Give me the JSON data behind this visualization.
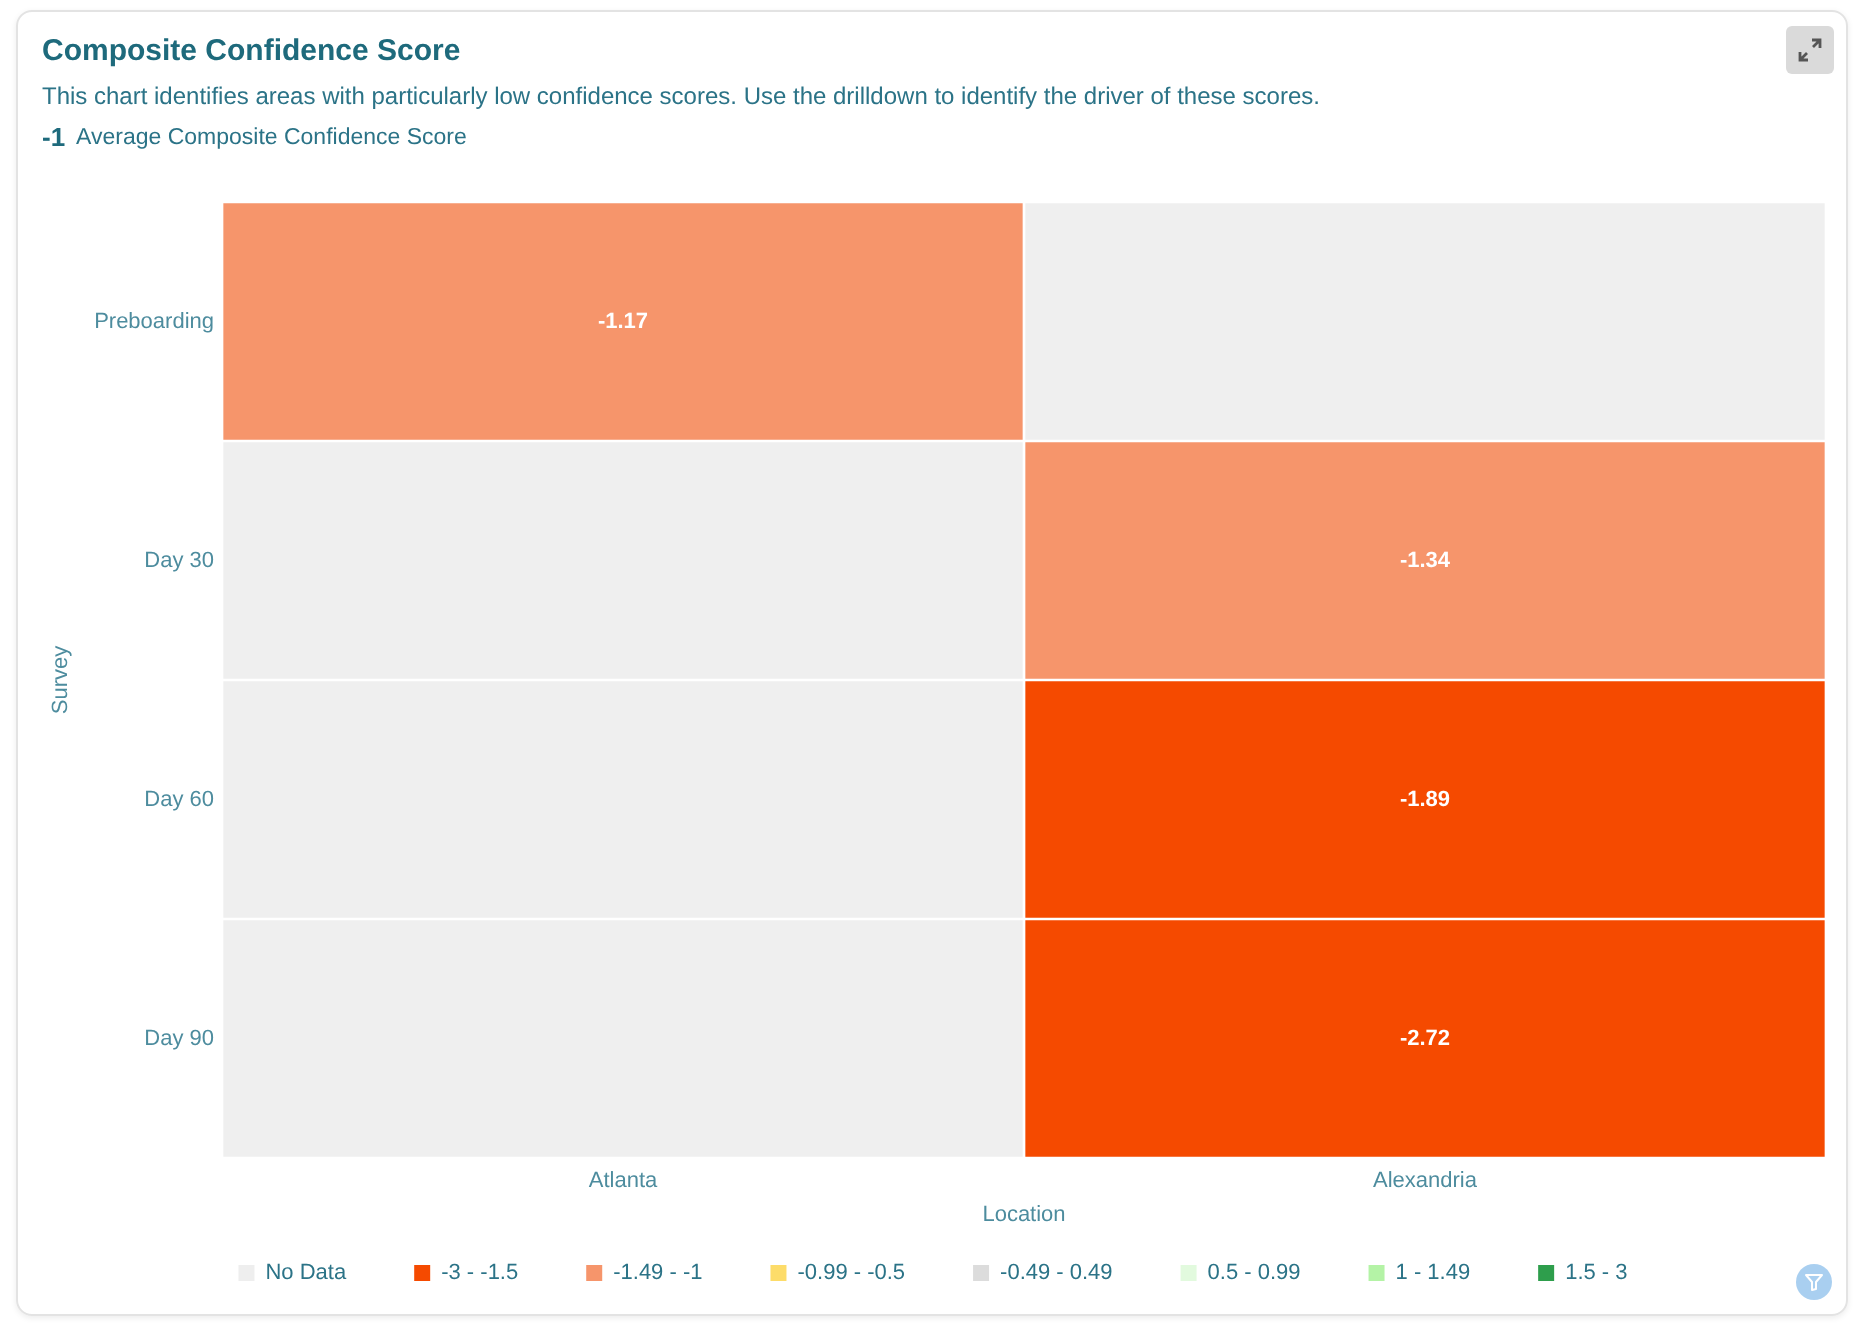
{
  "chart_data": {
    "type": "heatmap",
    "title": "Composite Confidence Score",
    "subtitle": "This chart identifies areas with particularly low confidence scores. Use the drilldown to identify the driver of these scores.",
    "annotations": [
      "-1",
      "Average Composite Confidence Score"
    ],
    "xlabel": "Location",
    "ylabel": "Survey",
    "categories": [
      "Atlanta",
      "Alexandria"
    ],
    "y_categories": [
      "Preboarding",
      "Day 30",
      "Day 60",
      "Day 90"
    ],
    "cells": [
      [
        -1.17,
        null
      ],
      [
        null,
        -1.34
      ],
      [
        null,
        -1.89
      ],
      [
        null,
        -2.72
      ]
    ],
    "colors": [
      [
        "#f6956b",
        "#efefef"
      ],
      [
        "#efefef",
        "#f6956b"
      ],
      [
        "#efefef",
        "#f54a00"
      ],
      [
        "#efefef",
        "#f54a00"
      ]
    ],
    "data_labels": true,
    "series": [
      {
        "name": "No Data",
        "color": "#eeeeee",
        "values": [
          null,
          null
        ]
      },
      {
        "name": "-3 - -1.5",
        "color": "#f54a00",
        "values": [
          null,
          null
        ]
      },
      {
        "name": "-1.49 - -1",
        "color": "#f6956b",
        "values": [
          null,
          null
        ]
      },
      {
        "name": "-0.99 - -0.5",
        "color": "#fddc69",
        "values": [
          null,
          null
        ]
      },
      {
        "name": "-0.49 - 0.49",
        "color": "#dcdcdc",
        "values": [
          null,
          null
        ]
      },
      {
        "name": "0.5 - 0.99",
        "color": "#e2fade",
        "values": [
          null,
          null
        ]
      },
      {
        "name": "1 - 1.49",
        "color": "#b4f3a6",
        "values": [
          null,
          null
        ]
      },
      {
        "name": "1.5 - 3",
        "color": "#2e9e4c",
        "values": [
          null,
          null
        ]
      }
    ],
    "legend": "bottom"
  }
}
